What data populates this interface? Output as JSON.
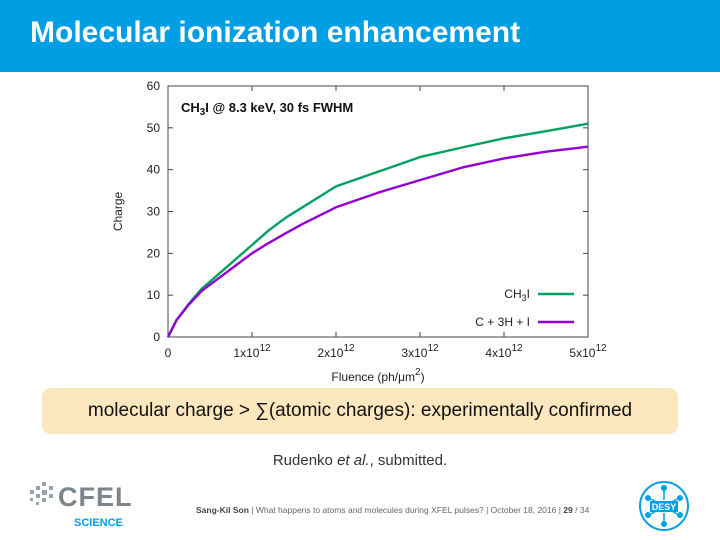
{
  "slide": {
    "title": "Molecular ionization enhancement",
    "callout": "molecular charge > ∑(atomic charges): experimentally confirmed",
    "citation_author": "Rudenko ",
    "citation_etal": "et al.",
    "citation_rest": ", submitted."
  },
  "footer": {
    "author": "Sang-Kil Son",
    "sep": " | ",
    "talk": "What happens to atoms and molecules during XFEL pulses?",
    "date": "October 18, 2016",
    "page": "29",
    "total": " / 34"
  },
  "logos": {
    "cfel_main": "CFEL",
    "cfel_sub": "SCIENCE",
    "desy": "DESY"
  },
  "colors": {
    "title_bar": "#009fe3",
    "callout_bg": "#fde7bf",
    "series_ch3i": "#00a060",
    "series_atoms": "#9400d3"
  },
  "chart_data": {
    "type": "line",
    "annotation": "CH3I @ 8.3 keV, 30 fs FWHM",
    "xlabel": "Fluence (ph/μm2)",
    "ylabel": "Charge",
    "xlim": [
      0,
      5000000000000.0
    ],
    "ylim": [
      0,
      60
    ],
    "xticks": [
      {
        "value": 0,
        "label": "0",
        "exp": ""
      },
      {
        "value": 1000000000000.0,
        "label": "1x10",
        "exp": "12"
      },
      {
        "value": 2000000000000.0,
        "label": "2x10",
        "exp": "12"
      },
      {
        "value": 3000000000000.0,
        "label": "3x10",
        "exp": "12"
      },
      {
        "value": 4000000000000.0,
        "label": "4x10",
        "exp": "12"
      },
      {
        "value": 5000000000000.0,
        "label": "5x10",
        "exp": "12"
      }
    ],
    "yticks": [
      0,
      10,
      20,
      30,
      40,
      50,
      60
    ],
    "legend_position": "bottom-right",
    "series": [
      {
        "name": "CH3I",
        "color": "#00a060",
        "x": [
          0,
          100000000000.0,
          250000000000.0,
          400000000000.0,
          600000000000.0,
          800000000000.0,
          1000000000000.0,
          1200000000000.0,
          1400000000000.0,
          1600000000000.0,
          1800000000000.0,
          2000000000000.0,
          2500000000000.0,
          3000000000000.0,
          3500000000000.0,
          4000000000000.0,
          4500000000000.0,
          5000000000000.0
        ],
        "y": [
          0,
          4,
          8,
          11.5,
          15,
          18.5,
          22,
          25.5,
          28.5,
          31,
          33.5,
          36,
          39.5,
          43,
          45.3,
          47.5,
          49.2,
          51
        ]
      },
      {
        "name": "C + 3H + I",
        "color": "#9400d3",
        "x": [
          0,
          100000000000.0,
          250000000000.0,
          400000000000.0,
          600000000000.0,
          800000000000.0,
          1000000000000.0,
          1200000000000.0,
          1400000000000.0,
          1600000000000.0,
          1800000000000.0,
          2000000000000.0,
          2500000000000.0,
          3000000000000.0,
          3500000000000.0,
          4000000000000.0,
          4500000000000.0,
          5000000000000.0
        ],
        "y": [
          0,
          4,
          7.8,
          11,
          14,
          17,
          20,
          22.5,
          24.8,
          27,
          29,
          31,
          34.5,
          37.5,
          40.5,
          42.7,
          44.3,
          45.5
        ]
      }
    ]
  }
}
